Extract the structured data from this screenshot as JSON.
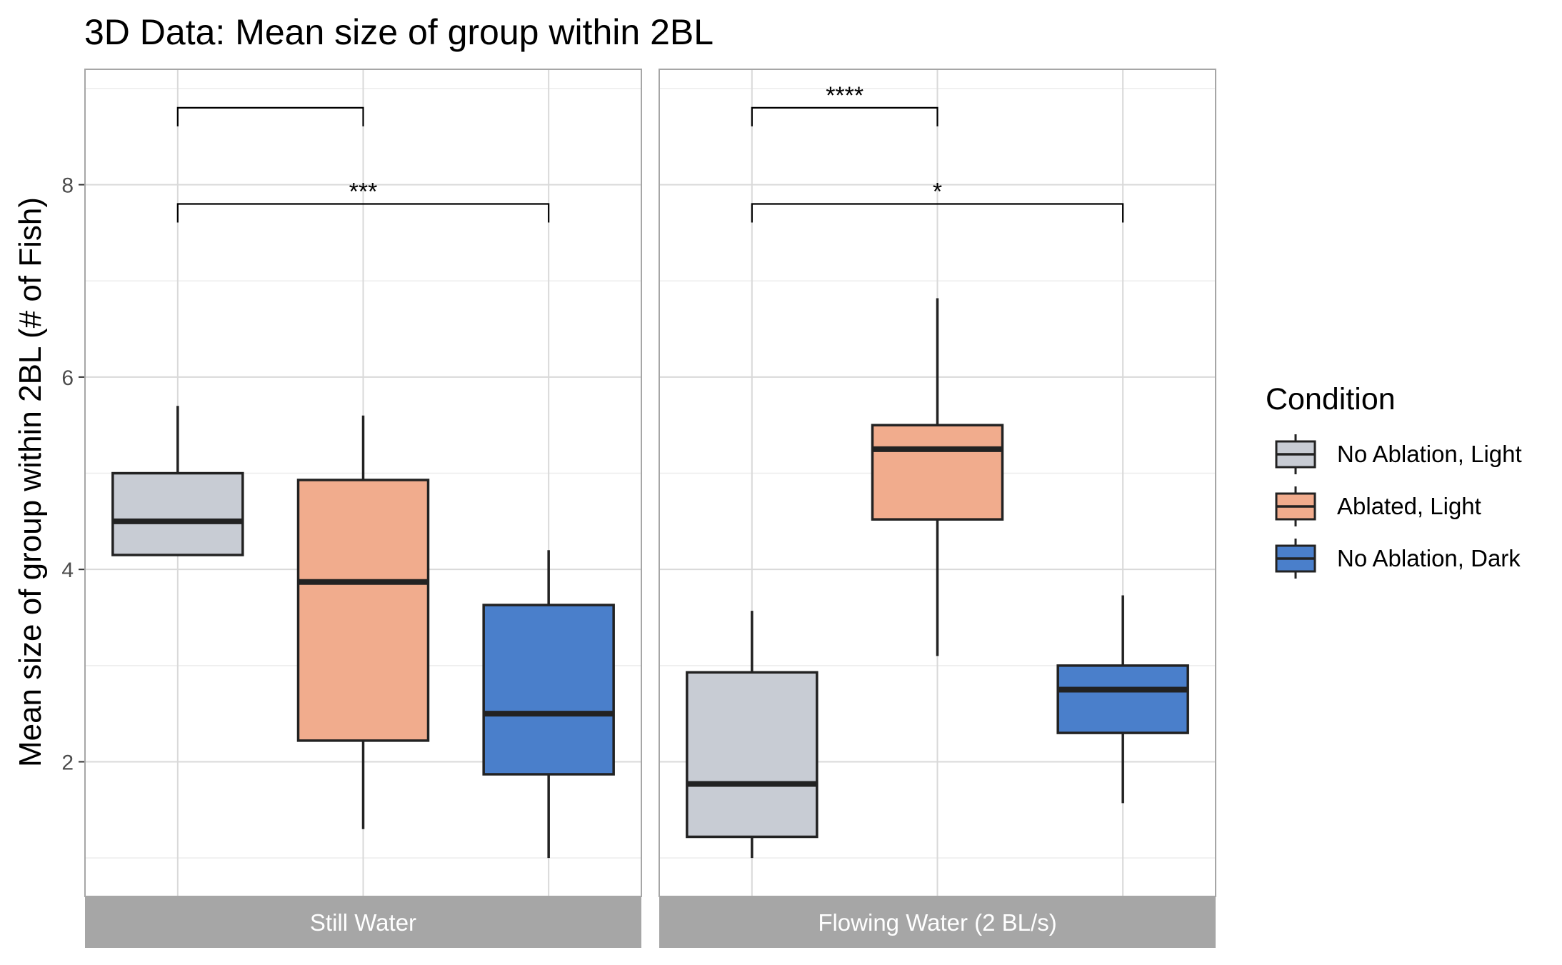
{
  "chart_data": {
    "type": "boxplot",
    "title": "3D Data: Mean size of group within 2BL",
    "ylabel": "Mean size of group within 2BL (# of Fish)",
    "xlabel": "",
    "ylim": [
      0.6,
      9.2
    ],
    "yticks": [
      2,
      4,
      6,
      8
    ],
    "grid": true,
    "legend": {
      "title": "Condition",
      "position": "right",
      "entries": [
        {
          "name": "No Ablation, Light",
          "color": "#c8ccd4"
        },
        {
          "name": "Ablated, Light",
          "color": "#f1ac8d"
        },
        {
          "name": "No Ablation, Dark",
          "color": "#4a7fcb"
        }
      ]
    },
    "panels": [
      {
        "label": "Still Water",
        "boxes": [
          {
            "condition": "No Ablation, Light",
            "whisker_low": 4.15,
            "q1": 4.15,
            "median": 4.5,
            "q3": 5.0,
            "whisker_high": 5.7
          },
          {
            "condition": "Ablated, Light",
            "whisker_low": 1.3,
            "q1": 2.22,
            "median": 3.87,
            "q3": 4.93,
            "whisker_high": 5.6
          },
          {
            "condition": "No Ablation, Dark",
            "whisker_low": 1.0,
            "q1": 1.87,
            "median": 2.5,
            "q3": 3.63,
            "whisker_high": 4.2
          }
        ],
        "brackets": [
          {
            "from": 0,
            "to": 1,
            "y": 8.8,
            "label": ""
          },
          {
            "from": 0,
            "to": 2,
            "y": 7.8,
            "label": "***"
          }
        ]
      },
      {
        "label": "Flowing Water (2 BL/s)",
        "boxes": [
          {
            "condition": "No Ablation, Light",
            "whisker_low": 1.0,
            "q1": 1.22,
            "median": 1.77,
            "q3": 2.93,
            "whisker_high": 3.57
          },
          {
            "condition": "Ablated, Light",
            "whisker_low": 3.1,
            "q1": 4.52,
            "median": 5.25,
            "q3": 5.5,
            "whisker_high": 6.82
          },
          {
            "condition": "No Ablation, Dark",
            "whisker_low": 1.57,
            "q1": 2.3,
            "median": 2.75,
            "q3": 3.0,
            "whisker_high": 3.73
          }
        ],
        "brackets": [
          {
            "from": 0,
            "to": 1,
            "y": 8.8,
            "label": "****"
          },
          {
            "from": 0,
            "to": 2,
            "y": 7.8,
            "label": "*"
          }
        ]
      }
    ]
  }
}
